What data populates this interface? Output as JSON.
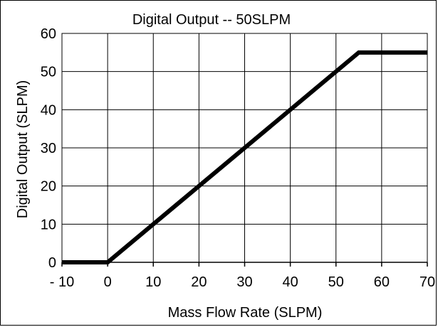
{
  "chart_data": {
    "type": "line",
    "title": "Digital Output -- 50SLPM",
    "xlabel": "Mass Flow Rate (SLPM)",
    "ylabel": "Digital Output (SLPM)",
    "xlim": [
      -10,
      70
    ],
    "ylim": [
      0,
      60
    ],
    "x_ticks": [
      -10,
      0,
      10,
      20,
      30,
      40,
      50,
      60,
      70
    ],
    "x_tick_labels": [
      "- 10",
      "0",
      "10",
      "20",
      "30",
      "40",
      "50",
      "60",
      "70"
    ],
    "y_ticks": [
      0,
      10,
      20,
      30,
      40,
      50,
      60
    ],
    "y_tick_labels": [
      "0",
      "10",
      "20",
      "30",
      "40",
      "50",
      "60"
    ],
    "grid": true,
    "series": [
      {
        "x": [
          -10,
          0,
          55,
          70
        ],
        "y": [
          0,
          0,
          55,
          55
        ],
        "color": "#000000"
      }
    ]
  }
}
